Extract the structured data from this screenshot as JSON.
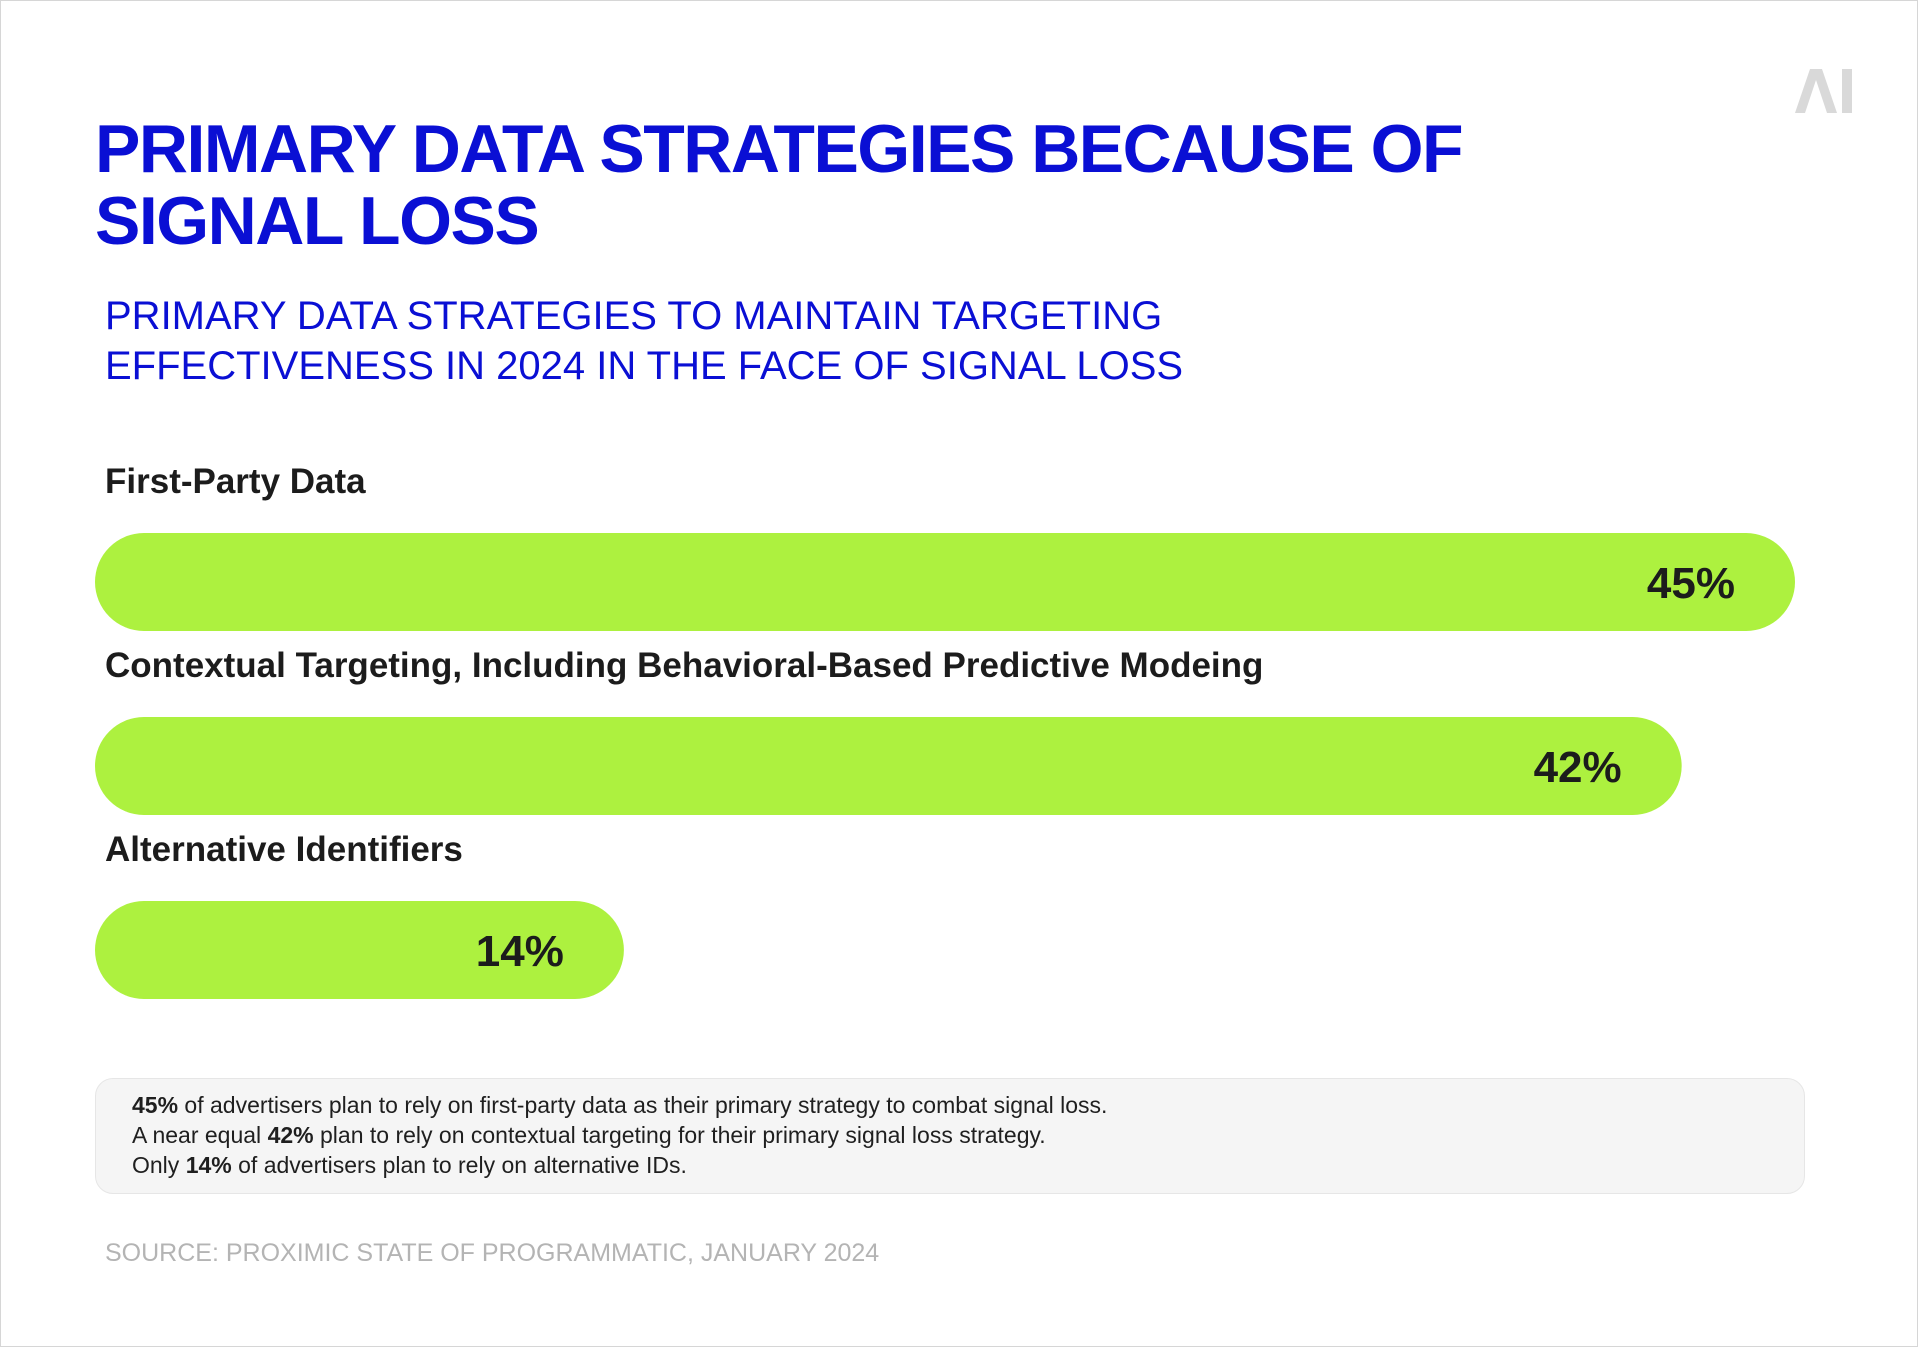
{
  "logo_text": "AI",
  "colors": {
    "accent": "#0a0fd4",
    "bar": "#adf13f",
    "text": "#1c1c1c",
    "source": "#b4b4b4"
  },
  "chart_data": {
    "type": "bar",
    "orientation": "horizontal",
    "title": "PRIMARY DATA STRATEGIES BECAUSE OF SIGNAL LOSS",
    "subtitle": "PRIMARY DATA STRATEGIES TO MAINTAIN TARGETING EFFECTIVENESS IN 2024 IN THE FACE OF SIGNAL LOSS",
    "categories": [
      "First-Party Data",
      "Contextual Targeting, Including Behavioral-Based Predictive Modeing",
      "Alternative Identifiers"
    ],
    "values": [
      45,
      42,
      14
    ],
    "value_labels": [
      "45%",
      "42%",
      "14%"
    ],
    "unit": "%",
    "xlim": [
      0,
      45
    ],
    "grid": false,
    "legend": "none"
  },
  "notes": [
    {
      "pre": "",
      "bold": "45%",
      "post": " of advertisers plan to rely on first-party data as their primary strategy to combat signal loss."
    },
    {
      "pre": "A near equal ",
      "bold": "42%",
      "post": " plan to rely on contextual targeting for their primary signal loss strategy."
    },
    {
      "pre": "Only ",
      "bold": "14%",
      "post": " of advertisers plan to rely on alternative IDs."
    }
  ],
  "source": "SOURCE: PROXIMIC STATE OF PROGRAMMATIC, JANUARY 2024"
}
